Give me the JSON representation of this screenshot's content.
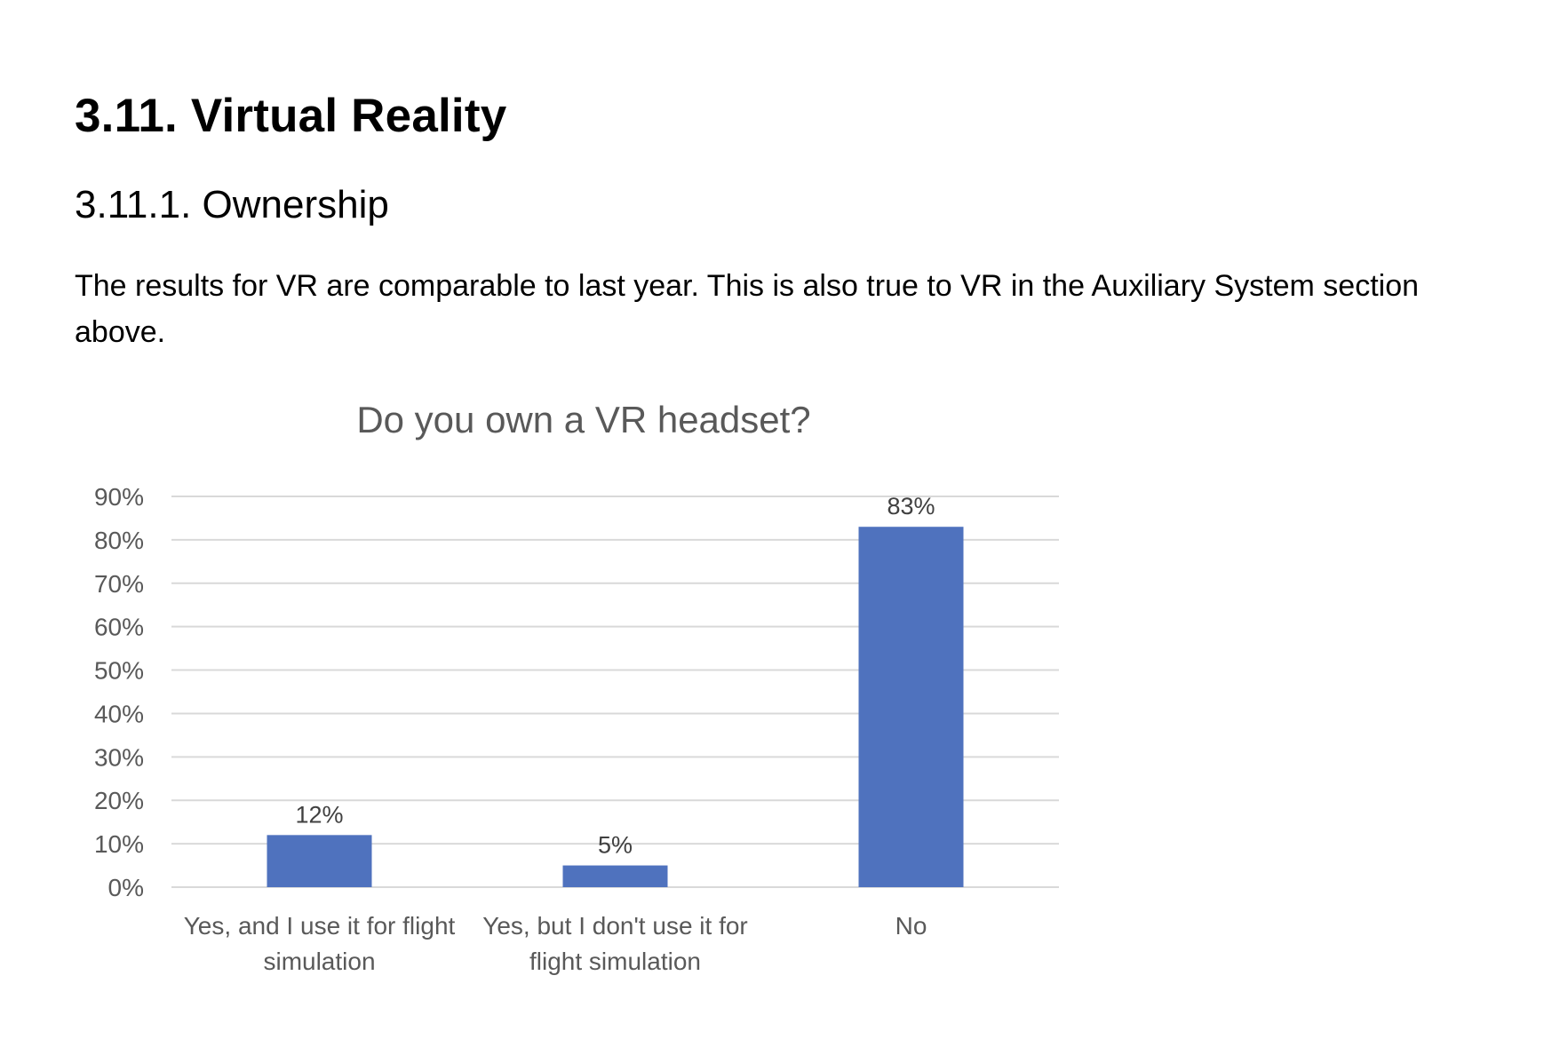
{
  "document": {
    "heading": "3.11. Virtual Reality",
    "subheading": "3.11.1. Ownership",
    "paragraph": "The results for VR are comparable to last year. This is also true to VR in the Auxiliary System section above."
  },
  "chart_data": {
    "type": "bar",
    "title": "Do you own a VR headset?",
    "xlabel": "",
    "ylabel": "",
    "categories": [
      [
        "Yes, and I use it for flight",
        "simulation"
      ],
      [
        "Yes, but I don't use it for",
        "flight simulation"
      ],
      [
        "No"
      ]
    ],
    "values": [
      12,
      5,
      83
    ],
    "data_labels": [
      "12%",
      "5%",
      "83%"
    ],
    "ylim": [
      0,
      90
    ],
    "yticks": [
      0,
      10,
      20,
      30,
      40,
      50,
      60,
      70,
      80,
      90
    ],
    "ytick_labels": [
      "0%",
      "10%",
      "20%",
      "30%",
      "40%",
      "50%",
      "60%",
      "70%",
      "80%",
      "90%"
    ],
    "grid": true,
    "legend": "none",
    "bar_color": "#4f72be",
    "grid_color": "#d9d9d9",
    "text_color": "#595959"
  }
}
